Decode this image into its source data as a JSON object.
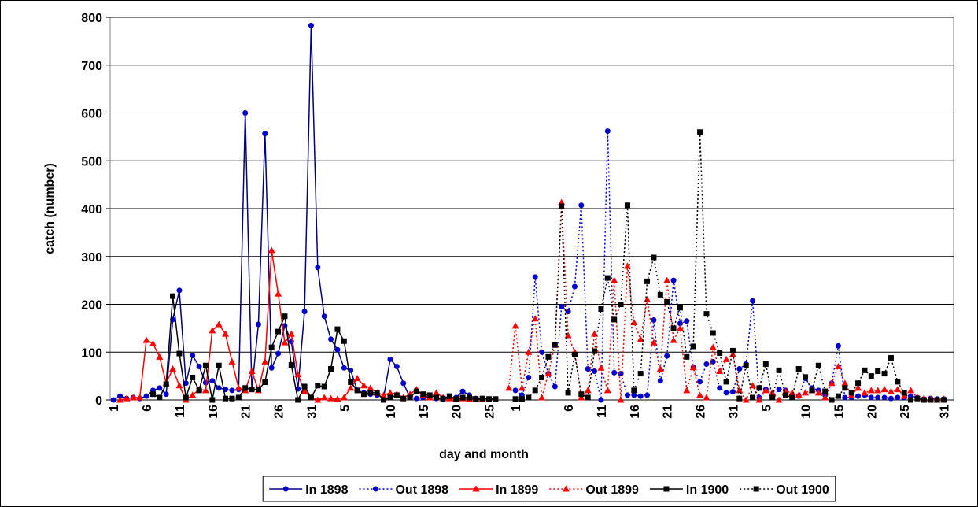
{
  "chart_data": {
    "type": "line",
    "y_label": "catch (number)",
    "x_label": "day and month",
    "ylim": [
      0,
      800
    ],
    "yticks": [
      0,
      100,
      200,
      300,
      400,
      500,
      600,
      700,
      800
    ],
    "grid": true,
    "legend": "bottom",
    "categories": [
      "1",
      null,
      null,
      null,
      null,
      "6",
      null,
      null,
      null,
      null,
      "11",
      null,
      null,
      null,
      null,
      "16",
      null,
      null,
      null,
      null,
      "21",
      null,
      null,
      null,
      null,
      "26",
      null,
      null,
      null,
      null,
      "31",
      null,
      null,
      null,
      null,
      "5",
      null,
      null,
      null,
      null,
      null,
      null,
      "10",
      null,
      null,
      null,
      null,
      "15",
      null,
      null,
      null,
      null,
      "20",
      null,
      null,
      null,
      null,
      "25",
      null,
      null,
      null,
      "1",
      null,
      null,
      null,
      null,
      null,
      null,
      null,
      "6",
      null,
      null,
      null,
      null,
      "11",
      null,
      null,
      null,
      null,
      "16",
      null,
      null,
      null,
      null,
      "21",
      null,
      null,
      null,
      null,
      "26",
      null,
      null,
      null,
      null,
      "31",
      null,
      null,
      null,
      null,
      "5",
      null,
      null,
      null,
      null,
      null,
      "10",
      null,
      null,
      null,
      null,
      "15",
      null,
      null,
      null,
      null,
      "20",
      null,
      null,
      null,
      null,
      "25",
      null,
      null,
      null,
      null,
      null,
      "31",
      null
    ],
    "series": [
      {
        "name": "In 1898",
        "color": "#000080",
        "marker_color": "#0000cc",
        "marker": "circle",
        "dash": "solid",
        "values": [
          0,
          8,
          3,
          5,
          3,
          8,
          20,
          25,
          12,
          168,
          229,
          35,
          93,
          70,
          36,
          40,
          25,
          22,
          20,
          22,
          600,
          22,
          158,
          557,
          67,
          97,
          155,
          122,
          23,
          185,
          783,
          277,
          175,
          127,
          105,
          67,
          62,
          20,
          15,
          12,
          10,
          5,
          85,
          70,
          35,
          5,
          3,
          5,
          5,
          3,
          2,
          3,
          5,
          18,
          10,
          3,
          2,
          null,
          null,
          null,
          null,
          null,
          null,
          null,
          null,
          null,
          null,
          null,
          null,
          null,
          null,
          null,
          null,
          null,
          null,
          null,
          null,
          null,
          null,
          null,
          null,
          null,
          null,
          null,
          null,
          null,
          null,
          null,
          null,
          null,
          null,
          null,
          null,
          null,
          null,
          null,
          null,
          null,
          null,
          null,
          null,
          null,
          null,
          null,
          null,
          null,
          null,
          null,
          null,
          null,
          null,
          null,
          null,
          null,
          null,
          null,
          null,
          null,
          null,
          null,
          null,
          null,
          null,
          null,
          null,
          null,
          null,
          null
        ]
      },
      {
        "name": "Out 1898",
        "color": "#0000ff",
        "marker_color": "#0000cc",
        "marker": "circle",
        "dash": "dotted",
        "values": [
          null,
          null,
          null,
          null,
          null,
          null,
          null,
          null,
          null,
          null,
          null,
          null,
          null,
          null,
          null,
          null,
          null,
          null,
          null,
          null,
          null,
          null,
          null,
          null,
          null,
          null,
          null,
          null,
          null,
          null,
          null,
          null,
          null,
          null,
          null,
          null,
          null,
          null,
          null,
          null,
          null,
          null,
          null,
          null,
          null,
          null,
          null,
          null,
          null,
          null,
          null,
          null,
          null,
          null,
          null,
          null,
          null,
          null,
          null,
          null,
          null,
          20,
          10,
          47,
          257,
          100,
          55,
          28,
          195,
          185,
          237,
          407,
          65,
          60,
          0,
          562,
          57,
          55,
          10,
          10,
          8,
          10,
          167,
          40,
          92,
          250,
          160,
          165,
          68,
          38,
          75,
          80,
          25,
          15,
          17,
          65,
          75,
          207,
          5,
          22,
          5,
          22,
          20,
          10,
          8,
          45,
          25,
          20,
          10,
          35,
          113,
          5,
          5,
          8,
          10,
          5,
          5,
          5,
          3,
          5,
          5,
          8,
          5,
          2,
          3,
          2,
          2,
          null
        ]
      },
      {
        "name": "In 1899",
        "color": "#ff0000",
        "marker_color": "#ff0000",
        "marker": "triangle",
        "dash": "solid",
        "values": [
          null,
          0,
          3,
          5,
          5,
          125,
          118,
          90,
          35,
          65,
          30,
          0,
          10,
          22,
          20,
          145,
          158,
          138,
          80,
          25,
          20,
          60,
          20,
          80,
          313,
          222,
          120,
          138,
          53,
          18,
          5,
          0,
          5,
          3,
          2,
          5,
          25,
          45,
          30,
          25,
          15,
          10,
          15,
          12,
          5,
          12,
          22,
          10,
          5,
          15,
          5,
          3,
          2,
          3,
          2,
          2,
          2,
          null,
          null,
          null,
          null,
          null,
          null,
          null,
          null,
          null,
          null,
          null,
          null,
          null,
          null,
          null,
          null,
          null,
          null,
          null,
          null,
          null,
          null,
          null,
          null,
          null,
          null,
          null,
          null,
          null,
          null,
          null,
          null,
          null,
          null,
          null,
          null,
          null,
          null,
          null,
          null,
          null,
          null,
          null,
          null,
          null,
          null,
          null,
          null,
          null,
          null,
          null,
          null,
          null,
          null,
          null,
          null,
          null,
          null,
          null,
          null,
          null,
          null,
          null,
          null,
          null,
          null,
          null,
          null,
          null,
          null,
          null
        ]
      },
      {
        "name": "Out 1899",
        "color": "#ff0000",
        "marker_color": "#ff0000",
        "marker": "triangle",
        "dash": "dotted",
        "values": [
          null,
          null,
          null,
          null,
          null,
          null,
          null,
          null,
          null,
          null,
          null,
          null,
          null,
          null,
          null,
          null,
          null,
          null,
          null,
          null,
          null,
          null,
          null,
          null,
          null,
          null,
          null,
          null,
          null,
          null,
          null,
          null,
          null,
          null,
          null,
          null,
          null,
          null,
          null,
          null,
          null,
          null,
          null,
          null,
          null,
          null,
          null,
          null,
          null,
          null,
          null,
          null,
          null,
          null,
          null,
          null,
          null,
          null,
          null,
          null,
          25,
          155,
          25,
          100,
          170,
          5,
          55,
          115,
          413,
          135,
          100,
          5,
          20,
          138,
          67,
          20,
          250,
          0,
          280,
          162,
          127,
          210,
          120,
          65,
          250,
          125,
          150,
          20,
          68,
          10,
          5,
          110,
          60,
          85,
          95,
          20,
          0,
          30,
          0,
          20,
          15,
          0,
          18,
          15,
          10,
          15,
          20,
          15,
          5,
          35,
          70,
          35,
          10,
          25,
          15,
          20,
          20,
          22,
          18,
          22,
          8,
          20,
          5,
          3,
          2,
          0,
          2,
          null
        ]
      },
      {
        "name": "In 1900",
        "color": "#000000",
        "marker_color": "#000000",
        "marker": "square",
        "dash": "solid",
        "values": [
          null,
          null,
          null,
          null,
          null,
          null,
          12,
          5,
          33,
          217,
          97,
          5,
          47,
          20,
          72,
          0,
          72,
          3,
          3,
          5,
          25,
          22,
          22,
          37,
          110,
          143,
          175,
          73,
          0,
          28,
          5,
          30,
          28,
          65,
          148,
          123,
          37,
          20,
          12,
          15,
          15,
          0,
          5,
          10,
          3,
          5,
          18,
          12,
          10,
          5,
          3,
          8,
          2,
          5,
          5,
          2,
          3,
          2,
          2,
          null,
          null,
          null,
          null,
          null,
          null,
          null,
          null,
          null,
          null,
          null,
          null,
          null,
          null,
          null,
          null,
          null,
          null,
          null,
          null,
          null,
          null,
          null,
          null,
          null,
          null,
          null,
          null,
          null,
          null,
          null,
          null,
          null,
          null,
          null,
          null,
          null,
          null,
          null,
          null,
          null,
          null,
          null,
          null,
          null,
          null,
          null,
          null,
          null,
          null,
          null,
          null,
          null,
          null,
          null,
          null,
          null,
          null,
          null,
          null,
          null,
          null,
          null,
          null,
          null,
          null,
          null,
          null,
          null
        ]
      },
      {
        "name": "Out 1900",
        "color": "#000000",
        "marker_color": "#000000",
        "marker": "square",
        "dash": "dotted",
        "values": [
          null,
          null,
          null,
          null,
          null,
          null,
          null,
          null,
          null,
          null,
          null,
          null,
          null,
          null,
          null,
          null,
          null,
          null,
          null,
          null,
          null,
          null,
          null,
          null,
          null,
          null,
          null,
          null,
          null,
          null,
          null,
          null,
          null,
          null,
          null,
          null,
          null,
          null,
          null,
          null,
          null,
          null,
          null,
          null,
          null,
          null,
          null,
          null,
          null,
          null,
          null,
          null,
          null,
          null,
          null,
          null,
          null,
          null,
          null,
          null,
          null,
          2,
          2,
          5,
          20,
          47,
          90,
          115,
          405,
          15,
          95,
          12,
          5,
          102,
          190,
          255,
          168,
          200,
          407,
          20,
          55,
          248,
          298,
          220,
          205,
          150,
          193,
          90,
          112,
          560,
          180,
          140,
          98,
          38,
          103,
          3,
          72,
          5,
          25,
          75,
          5,
          62,
          10,
          5,
          65,
          48,
          20,
          72,
          18,
          0,
          8,
          25,
          15,
          35,
          62,
          50,
          60,
          55,
          88,
          38,
          15,
          0,
          3,
          0,
          0,
          0,
          0,
          null
        ]
      }
    ]
  }
}
